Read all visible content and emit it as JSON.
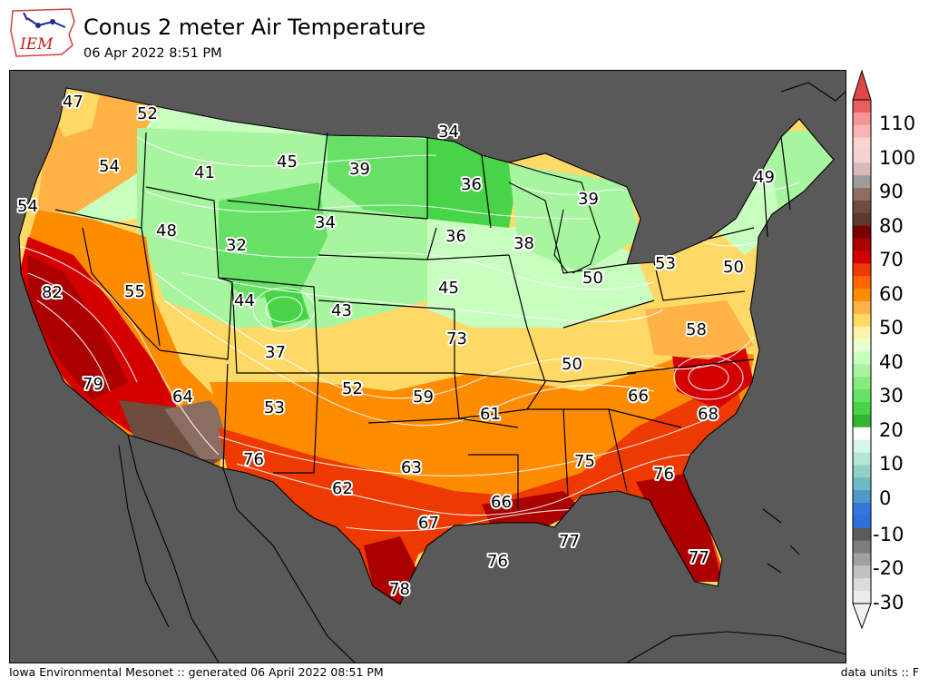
{
  "header": {
    "title": "Conus 2 meter Air Temperature",
    "subtitle": "06 Apr 2022 8:51 PM",
    "logo_text": "IEM"
  },
  "footer": {
    "left": "Iowa Environmental Mesonet :: generated 06 April 2022 08:51 PM",
    "right": "data units :: F"
  },
  "colors": {
    "ocean_background": "#595959",
    "accent_white_labels": "#ffffff"
  },
  "colorbar": {
    "ticks": [
      "110",
      "100",
      "90",
      "80",
      "70",
      "60",
      "50",
      "40",
      "30",
      "20",
      "10",
      "0",
      "-10",
      "-20",
      "-30"
    ],
    "colors_top_to_bottom": [
      "#e85d5d",
      "#f59494",
      "#f9b5b5",
      "#fad4d4",
      "#f2d3d3",
      "#d9b8b8",
      "#9c9c9c",
      "#8c6d62",
      "#6e4c3e",
      "#5a3a2e",
      "#7a0000",
      "#aa0000",
      "#d40000",
      "#ee3a00",
      "#ff6600",
      "#ff8c00",
      "#ffb347",
      "#ffd966",
      "#fff2a8",
      "#e8ffd0",
      "#c8ffc0",
      "#a8f5a0",
      "#86ec80",
      "#66e066",
      "#48d448",
      "#32b432",
      "#ffffff",
      "#d6f5ec",
      "#b2e6d8",
      "#8fd0c8",
      "#6fb8c8",
      "#4f98c8",
      "#3278d8",
      "#2c70e0",
      "#5b5b5b",
      "#7d7d7d",
      "#a0a0a0",
      "#c2c2c2",
      "#dcdcdc",
      "#ececec"
    ]
  },
  "station_values": [
    {
      "label": "47"
    },
    {
      "label": "52"
    },
    {
      "label": "34"
    },
    {
      "label": "54"
    },
    {
      "label": "41"
    },
    {
      "label": "45"
    },
    {
      "label": "39"
    },
    {
      "label": "36"
    },
    {
      "label": "39"
    },
    {
      "label": "49"
    },
    {
      "label": "54"
    },
    {
      "label": "48"
    },
    {
      "label": "34"
    },
    {
      "label": "32"
    },
    {
      "label": "36"
    },
    {
      "label": "38"
    },
    {
      "label": "82"
    },
    {
      "label": "55"
    },
    {
      "label": "44"
    },
    {
      "label": "43"
    },
    {
      "label": "45"
    },
    {
      "label": "50"
    },
    {
      "label": "53"
    },
    {
      "label": "50"
    },
    {
      "label": "37"
    },
    {
      "label": "73"
    },
    {
      "label": "58"
    },
    {
      "label": "79"
    },
    {
      "label": "64"
    },
    {
      "label": "52"
    },
    {
      "label": "59"
    },
    {
      "label": "50"
    },
    {
      "label": "66"
    },
    {
      "label": "53"
    },
    {
      "label": "61"
    },
    {
      "label": "68"
    },
    {
      "label": "76"
    },
    {
      "label": "63"
    },
    {
      "label": "75"
    },
    {
      "label": "76"
    },
    {
      "label": "62"
    },
    {
      "label": "66"
    },
    {
      "label": "67"
    },
    {
      "label": "77"
    },
    {
      "label": "76"
    },
    {
      "label": "77"
    },
    {
      "label": "78"
    }
  ]
}
